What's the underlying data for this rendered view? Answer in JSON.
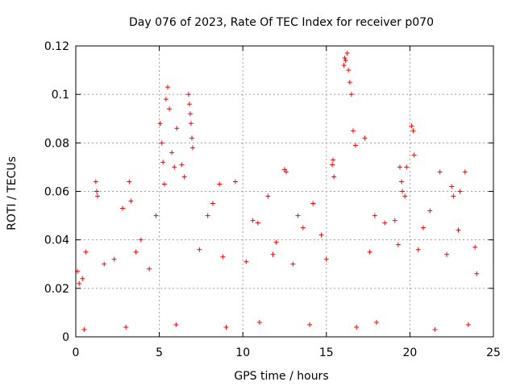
{
  "chart_data": {
    "type": "scatter",
    "title": "Day 076 of 2023, Rate Of TEC Index for receiver p070",
    "xlabel": "GPS time / hours",
    "ylabel": "ROTI / TECUs",
    "xlim": [
      0,
      25
    ],
    "ylim": [
      0,
      0.12
    ],
    "x_ticks": [
      "0",
      "5",
      "10",
      "15",
      "20",
      "25"
    ],
    "y_ticks": [
      "0",
      "0.02",
      "0.04",
      "0.06",
      "0.08",
      "0.1",
      "0.12"
    ],
    "grid": true,
    "marker": "plus",
    "color": "#ff0000",
    "series": [
      {
        "x": [
          5.05,
          5.15,
          5.22,
          5.3,
          5.4,
          5.5,
          5.6,
          5.75,
          5.9,
          6.05,
          6.35,
          6.5,
          6.75,
          6.8,
          6.85,
          6.9,
          6.95,
          7.0,
          16.05,
          16.1,
          16.15,
          16.25,
          16.32,
          16.4,
          16.5,
          16.6,
          16.75,
          17.3,
          19.4,
          19.5,
          19.55,
          19.7,
          19.8,
          20.1,
          20.2,
          20.25,
          21.8,
          22.5,
          22.6,
          23.0,
          23.3,
          12.5,
          12.6,
          1.2,
          1.25,
          1.3,
          3.2,
          3.3,
          8.6,
          9.55,
          4.8,
          15.35,
          15.4,
          15.45,
          11.5,
          2.8,
          0.1,
          0.2,
          0.4,
          0.6,
          13.3,
          13.6,
          14.2,
          10.6,
          10.9,
          21.2,
          23.9,
          7.9,
          8.2,
          17.9,
          18.5,
          19.1,
          3.9,
          12.0,
          14.7,
          20.8,
          22.9,
          0.5,
          3.0,
          6.0,
          9.0,
          11.0,
          14.0,
          16.8,
          18.0,
          21.5,
          23.5,
          1.7,
          2.3,
          3.6,
          4.4,
          7.4,
          8.8,
          10.2,
          11.8,
          13.0,
          15.0,
          17.6,
          19.3,
          20.5,
          22.2,
          24.0
        ],
        "y": [
          0.088,
          0.08,
          0.072,
          0.063,
          0.098,
          0.103,
          0.094,
          0.076,
          0.07,
          0.086,
          0.071,
          0.066,
          0.1,
          0.096,
          0.092,
          0.088,
          0.082,
          0.078,
          0.112,
          0.115,
          0.114,
          0.117,
          0.11,
          0.105,
          0.1,
          0.085,
          0.079,
          0.082,
          0.07,
          0.064,
          0.06,
          0.058,
          0.07,
          0.087,
          0.085,
          0.075,
          0.068,
          0.062,
          0.058,
          0.06,
          0.068,
          0.069,
          0.068,
          0.064,
          0.06,
          0.058,
          0.064,
          0.056,
          0.063,
          0.064,
          0.05,
          0.071,
          0.073,
          0.066,
          0.058,
          0.053,
          0.027,
          0.022,
          0.024,
          0.035,
          0.05,
          0.045,
          0.055,
          0.048,
          0.047,
          0.052,
          0.037,
          0.05,
          0.055,
          0.05,
          0.047,
          0.048,
          0.04,
          0.039,
          0.042,
          0.045,
          0.044,
          0.003,
          0.004,
          0.005,
          0.004,
          0.006,
          0.005,
          0.004,
          0.006,
          0.003,
          0.005,
          0.03,
          0.032,
          0.035,
          0.028,
          0.036,
          0.033,
          0.031,
          0.034,
          0.03,
          0.032,
          0.035,
          0.038,
          0.036,
          0.034,
          0.026
        ]
      }
    ]
  }
}
